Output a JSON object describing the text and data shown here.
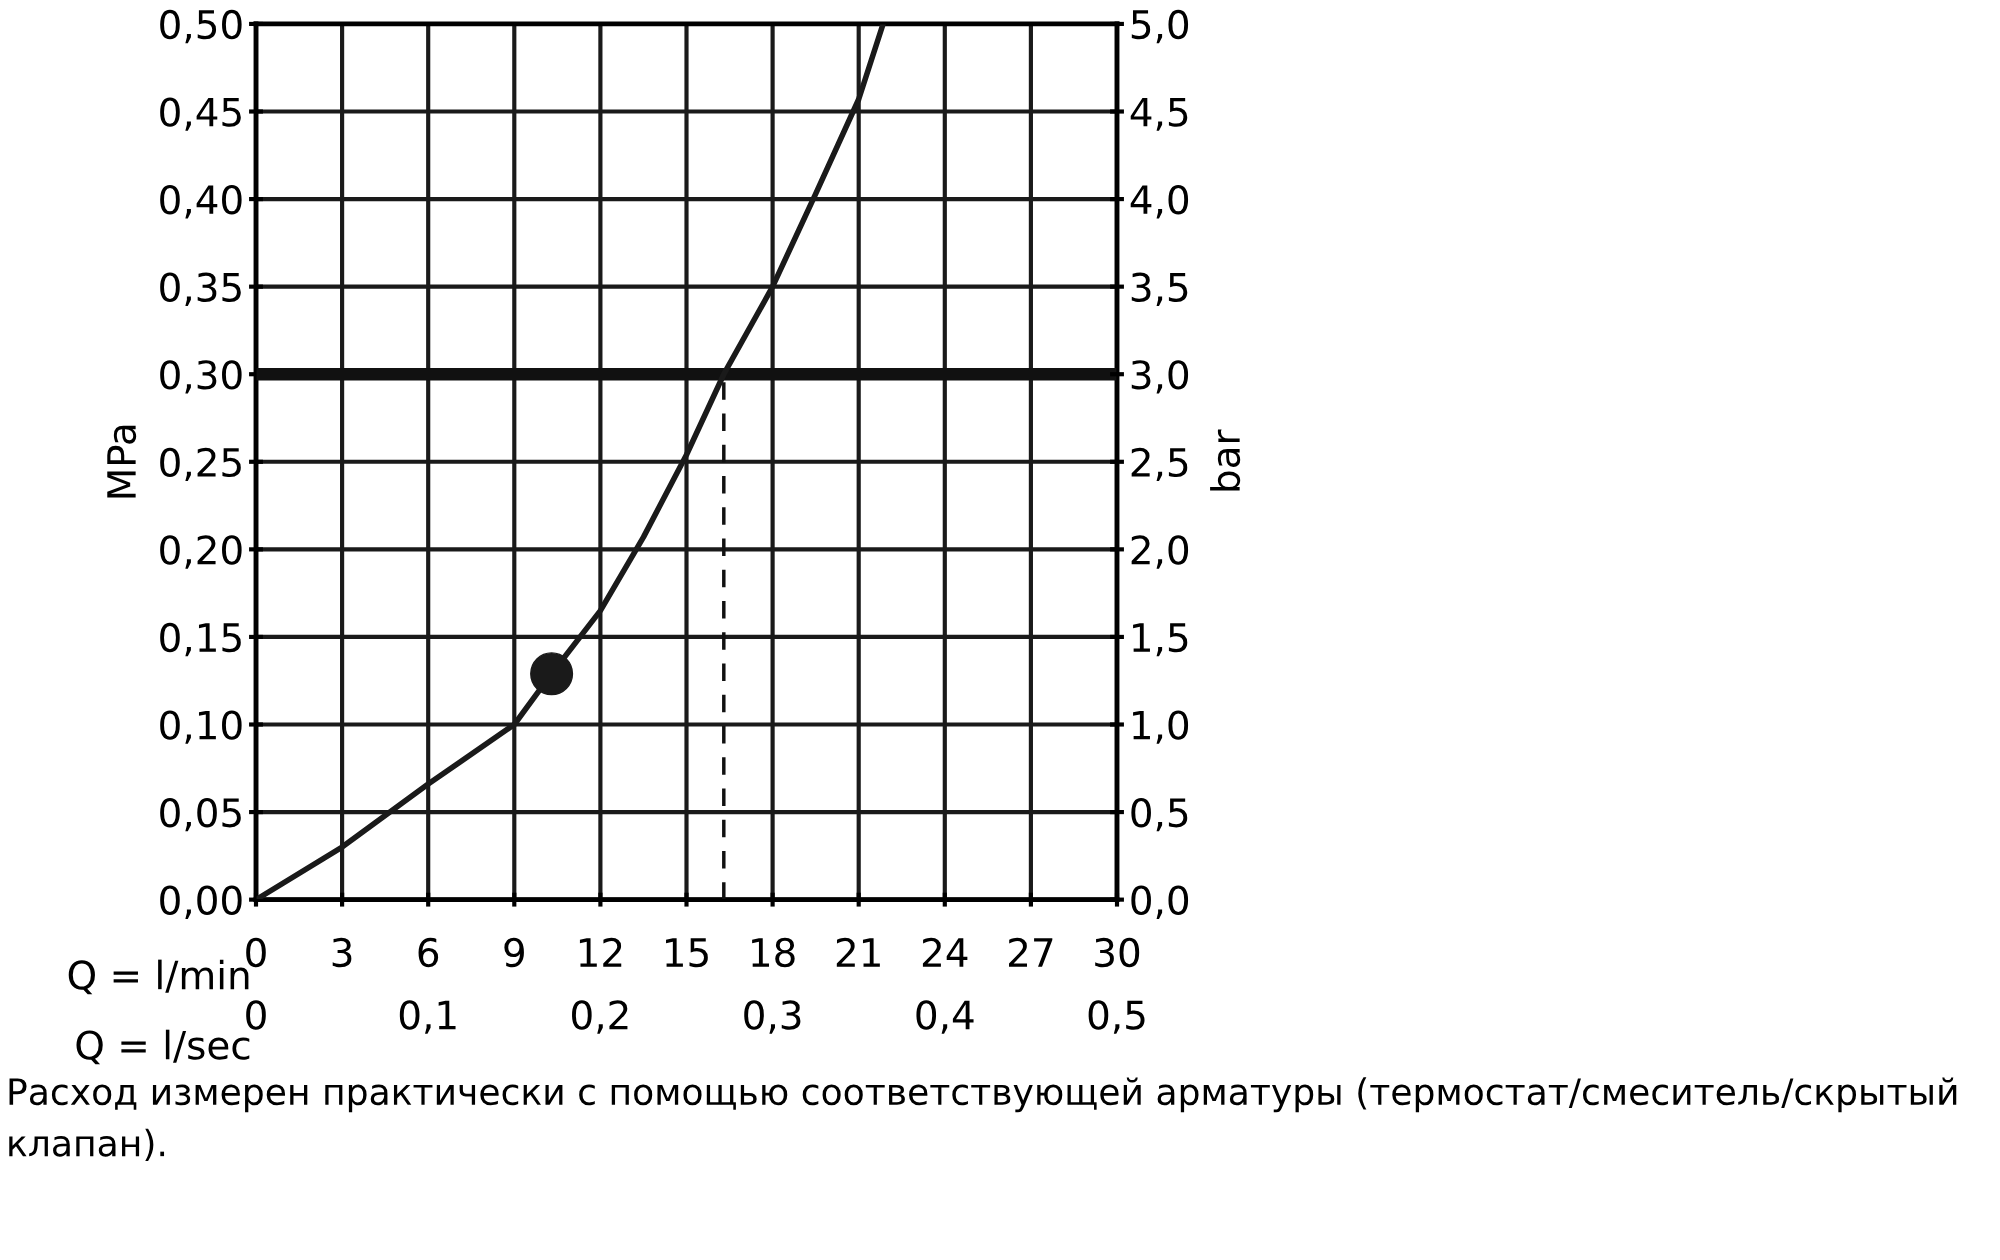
{
  "chart_data": {
    "type": "line",
    "xlabel": "Q = l/min",
    "x2label": "Q = l/sec",
    "ylabel": "MPa",
    "y2label": "bar",
    "x": [
      0,
      3,
      6,
      9,
      10.3,
      12,
      13.5,
      15,
      16.3,
      18,
      19.5,
      21,
      21.85
    ],
    "series": [
      {
        "type": "line",
        "color": "#1a1a1a",
        "values": [
          0,
          0.03,
          0.066,
          0.1,
          0.129,
          0.165,
          0.207,
          0.254,
          0.3,
          0.35,
          0.403,
          0.457,
          0.5
        ]
      },
      {
        "type": "scatter",
        "color": "#1a1a1a",
        "marker": "circle",
        "x": [
          10.3
        ],
        "values": [
          0.129
        ]
      }
    ],
    "xlim": [
      0,
      30
    ],
    "xticks": [
      0,
      3,
      6,
      9,
      12,
      15,
      18,
      21,
      24,
      27,
      30
    ],
    "x2lim": [
      0,
      0.5
    ],
    "x2ticks": [
      0,
      {
        "value": 0.1,
        "label": "0,1"
      },
      {
        "value": 0.2,
        "label": "0,2"
      },
      {
        "value": 0.3,
        "label": "0,3"
      },
      {
        "value": 0.4,
        "label": "0,4"
      },
      {
        "value": 0.5,
        "label": "0,5"
      }
    ],
    "ylim": [
      0,
      0.5
    ],
    "yticks": [
      {
        "value": 0,
        "label": "0,00"
      },
      {
        "value": 0.05,
        "label": "0,05"
      },
      {
        "value": 0.1,
        "label": "0,10"
      },
      {
        "value": 0.15,
        "label": "0,15"
      },
      {
        "value": 0.2,
        "label": "0,20"
      },
      {
        "value": 0.25,
        "label": "0,25"
      },
      {
        "value": 0.3,
        "label": "0,30"
      },
      {
        "value": 0.35,
        "label": "0,35"
      },
      {
        "value": 0.4,
        "label": "0,40"
      },
      {
        "value": 0.45,
        "label": "0,45"
      },
      {
        "value": 0.5,
        "label": "0,50"
      }
    ],
    "y2lim": [
      0,
      5
    ],
    "y2ticks": [
      {
        "value": 0,
        "label": "0,0"
      },
      {
        "value": 0.5,
        "label": "0,5"
      },
      {
        "value": 1,
        "label": "1,0"
      },
      {
        "value": 1.5,
        "label": "1,5"
      },
      {
        "value": 2,
        "label": "2,0"
      },
      {
        "value": 2.5,
        "label": "2,5"
      },
      {
        "value": 3,
        "label": "3,0"
      },
      {
        "value": 3.5,
        "label": "3,5"
      },
      {
        "value": 4,
        "label": "4,0"
      },
      {
        "value": 4.5,
        "label": "4,5"
      },
      {
        "value": 5,
        "label": "5,0"
      }
    ],
    "ref_lines": [
      {
        "axis": "y",
        "value": 0.3,
        "color": "#111111",
        "line_style": "solid"
      },
      {
        "axis": "x",
        "value": 16.3,
        "color": "#111111",
        "line_style": "dashed"
      }
    ],
    "grid": true,
    "legend": false,
    "line_style": "solid",
    "annotations": [
      "Расход измерен практически с помощью соответствующей арматуры (термостат/смеситель/скрытый клапан)."
    ]
  }
}
